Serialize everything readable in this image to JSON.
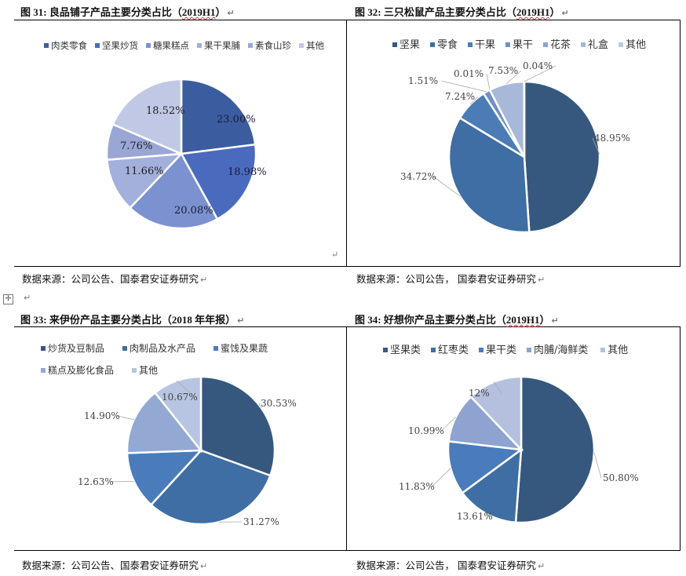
{
  "charts": [
    {
      "id": "c31",
      "title_prefix": "图 31:",
      "title_main": "良品铺子产品主要分类占比（",
      "title_year": "2019H1",
      "title_suffix": "）",
      "source": "数据来源：公司公告、国泰君安证券研究",
      "label_style": "inside",
      "chart_data": {
        "type": "pie",
        "title": "良品铺子产品主要分类占比（2019H1）",
        "categories": [
          "肉类零食",
          "坚果炒货",
          "糖果糕点",
          "果干果脯",
          "素食山珍",
          "其他"
        ],
        "values": [
          23.0,
          18.98,
          20.08,
          11.66,
          7.76,
          18.52
        ],
        "labels": [
          "23.00%",
          "18.98%",
          "20.08%",
          "11.66%",
          "7.76%",
          "18.52%"
        ],
        "colors": [
          "#3b5d9f",
          "#4a6bbd",
          "#7c91cf",
          "#a2b0db",
          "#9aa6d6",
          "#c0c8e5"
        ],
        "legend_position": "top"
      }
    },
    {
      "id": "c32",
      "title_prefix": "图 32:",
      "title_main": "三只松鼠产品主要分类占比（",
      "title_year": "2019H1",
      "title_suffix": "）",
      "source": "数据来源：公司公告，  国泰君安证券研究",
      "label_style": "outside",
      "chart_data": {
        "type": "pie",
        "title": "三只松鼠产品主要分类占比（2019H1）",
        "categories": [
          "坚果",
          "零食",
          "干果",
          "果干",
          "花茶",
          "礼盒",
          "其他"
        ],
        "values": [
          48.95,
          34.72,
          7.24,
          1.51,
          0.01,
          7.53,
          0.04
        ],
        "labels": [
          "48.95%",
          "34.72%",
          "7.24%",
          "1.51%",
          "0.01%",
          "7.53%",
          "0.04%"
        ],
        "colors": [
          "#36587f",
          "#3e6ea3",
          "#4c7cb5",
          "#6e91c2",
          "#8aa4cf",
          "#a7b8d9",
          "#bdcae3"
        ],
        "legend_position": "top"
      }
    },
    {
      "id": "c33",
      "title_prefix": "图 33:",
      "title_main": "来伊份产品主要分类占比（",
      "title_year": "2018 年年报",
      "title_suffix": "）",
      "source": "数据来源：公司公告、国泰君安证券研究",
      "label_style": "outside",
      "chart_data": {
        "type": "pie",
        "title": "来伊份产品主要分类占比（2018年年报）",
        "categories": [
          "炒货及豆制品",
          "肉制品及水产品",
          "蜜饯及果蔬",
          "糕点及膨化食品",
          "其他"
        ],
        "values": [
          30.53,
          31.27,
          12.63,
          14.9,
          10.67
        ],
        "labels": [
          "30.53%",
          "31.27%",
          "12.63%",
          "14.90%",
          "10.67%"
        ],
        "colors": [
          "#36587f",
          "#3e6ea3",
          "#4a7cbb",
          "#93a8d2",
          "#b7c4e2"
        ],
        "legend_position": "top"
      }
    },
    {
      "id": "c34",
      "title_prefix": "图 34:",
      "title_main": "好想你产品主要分类占比（",
      "title_year": "2019H1",
      "title_suffix": "）",
      "source": "数据来源：公司公告，  国泰君安证券研究",
      "label_style": "outside",
      "chart_data": {
        "type": "pie",
        "title": "好想你产品主要分类占比（2019H1）",
        "categories": [
          "坚果类",
          "红枣类",
          "果干类",
          "肉脯/海鲜类",
          "其他"
        ],
        "values": [
          50.8,
          13.61,
          11.83,
          10.99,
          12
        ],
        "labels": [
          "50.80%",
          "13.61%",
          "11.83%",
          "10.99%",
          "12%"
        ],
        "colors": [
          "#36587f",
          "#3e6ea3",
          "#4a7cbb",
          "#8ea3cf",
          "#b4c0de"
        ],
        "legend_position": "top"
      }
    }
  ]
}
